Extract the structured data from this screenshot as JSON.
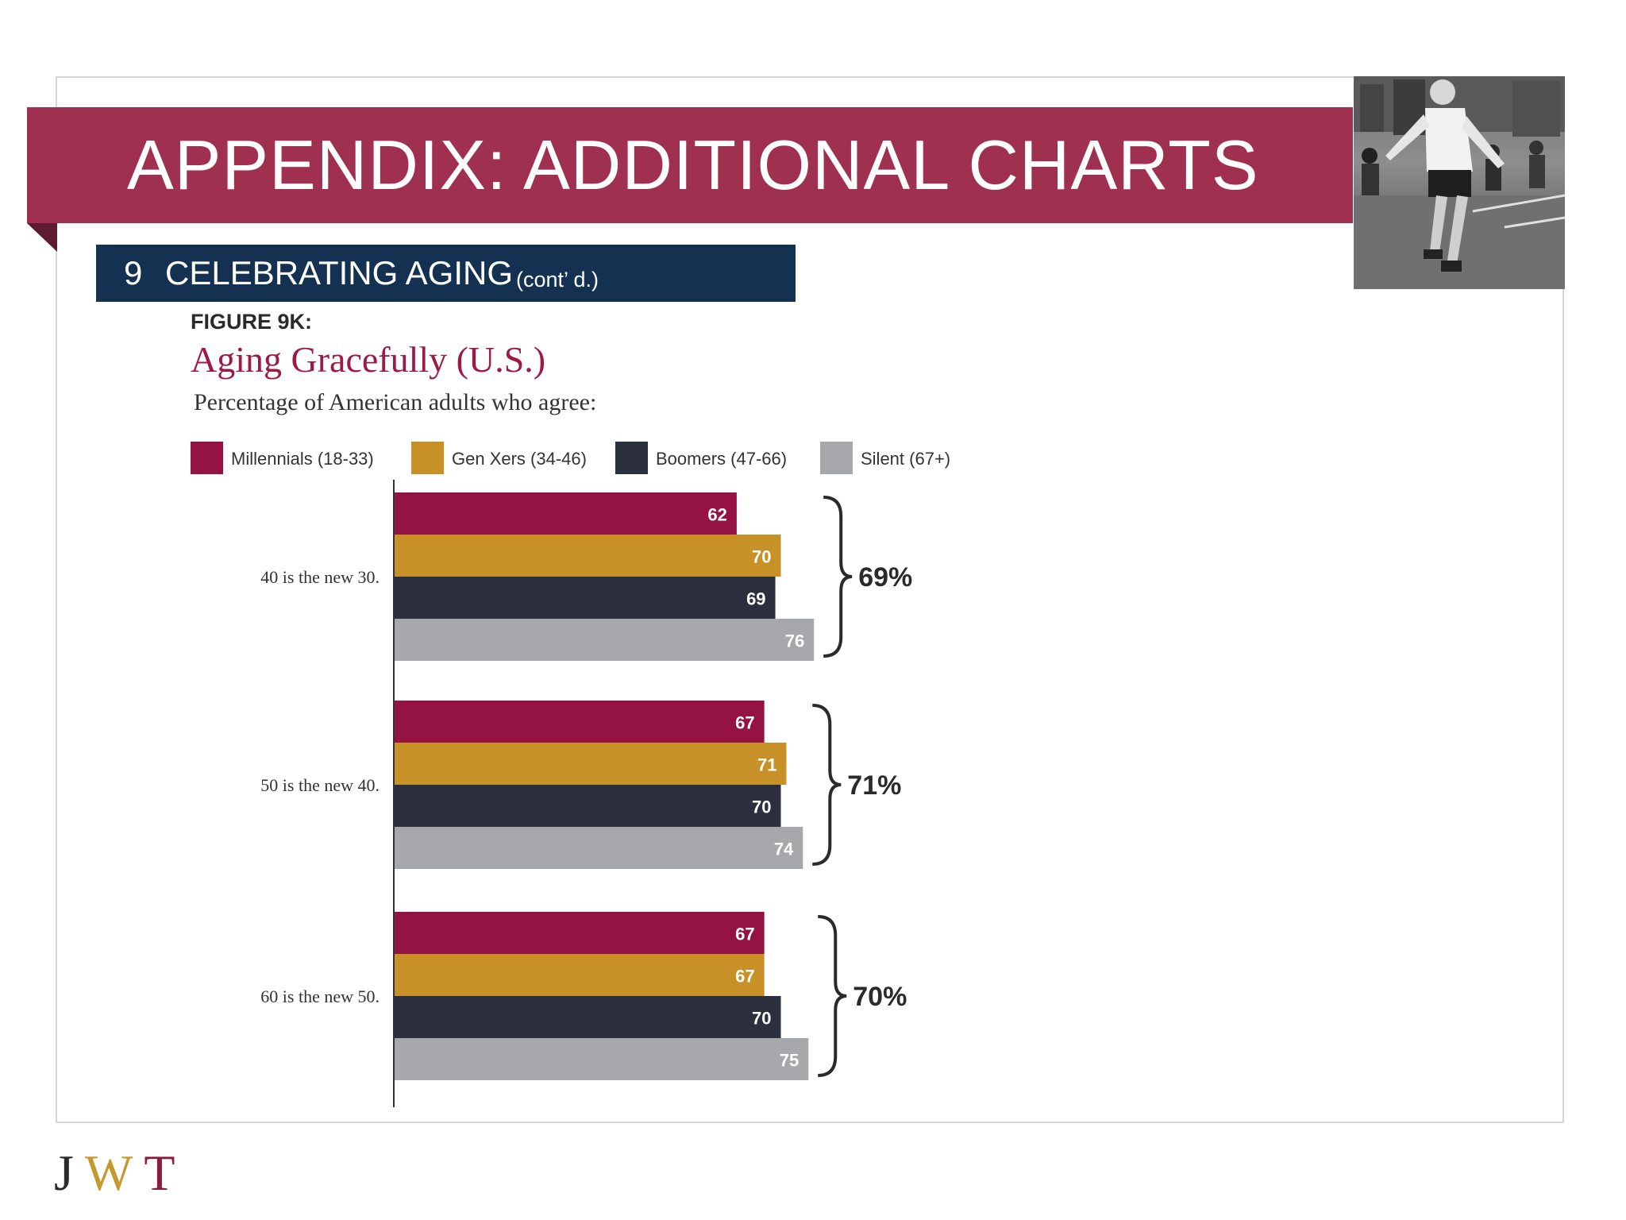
{
  "slide": {
    "title": "APPENDIX: ADDITIONAL CHARTS",
    "section_number": "9",
    "section_title": "CELEBRATING AGING",
    "section_suffix": "(cont’ d.)",
    "logo": {
      "j": "J",
      "w": "W",
      "t": "T"
    }
  },
  "colors": {
    "banner": "#a03050",
    "section_bar": "#143152"
  },
  "chart_data": {
    "type": "bar",
    "orientation": "horizontal",
    "figure_label": "FIGURE 9K:",
    "title": "Aging Gracefully (U.S.)",
    "subtitle": "Percentage of American adults who agree:",
    "categories": [
      "40 is the new 30.",
      "50 is the new 40.",
      "60 is the new 50."
    ],
    "series": [
      {
        "name": "Millennials (18-33)",
        "color": "#941343",
        "values": [
          62,
          67,
          67
        ]
      },
      {
        "name": "Gen Xers (34-46)",
        "color": "#c89127",
        "values": [
          70,
          71,
          67
        ]
      },
      {
        "name": "Boomers (47-66)",
        "color": "#2b2f3e",
        "values": [
          69,
          70,
          70
        ]
      },
      {
        "name": "Silent (67+)",
        "color": "#a7a8ab",
        "values": [
          76,
          74,
          75
        ]
      }
    ],
    "totals": [
      "69%",
      "71%",
      "70%"
    ],
    "legend_position": "top",
    "grid": false
  }
}
